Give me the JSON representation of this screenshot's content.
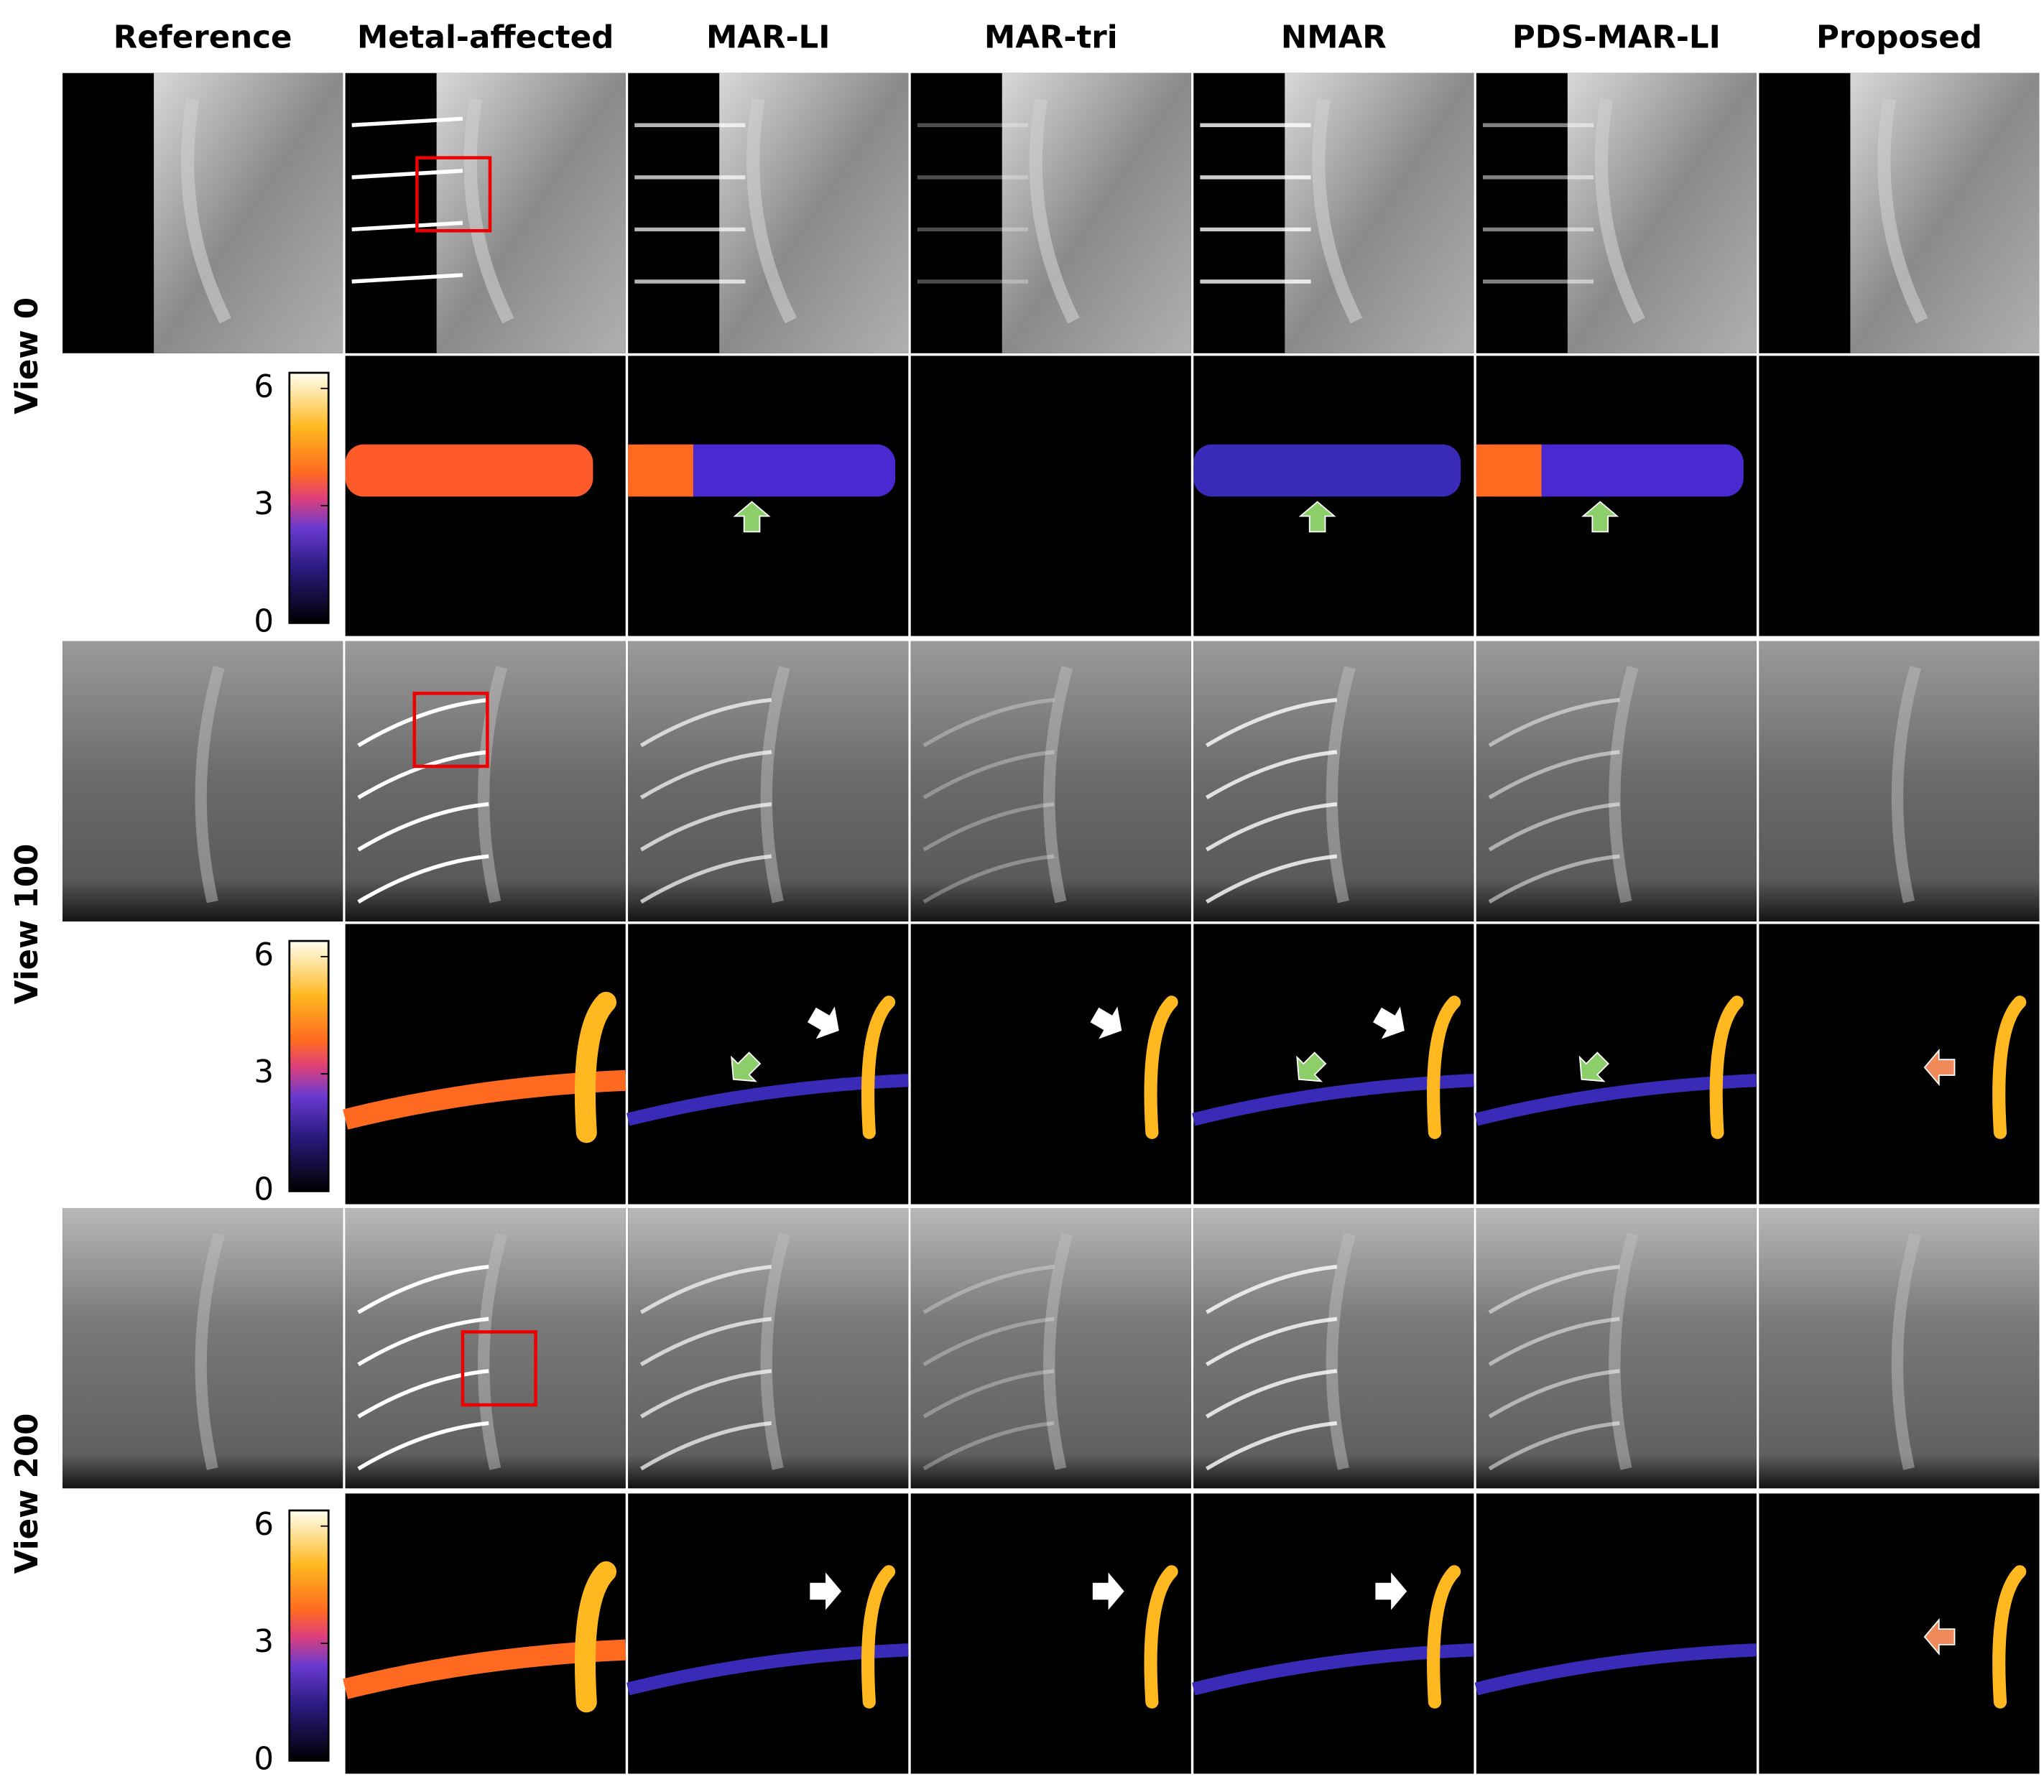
{
  "columns": [
    "Reference",
    "Metal-affected",
    "MAR-LI",
    "MAR-tri",
    "NMAR",
    "PDS-MAR-LI",
    "Proposed"
  ],
  "views": [
    {
      "label": "View 0",
      "colorbar": {
        "clim": [
          0,
          6.4
        ],
        "ticks": [
          0,
          3,
          6
        ]
      }
    },
    {
      "label": "View 100",
      "colorbar": {
        "clim": [
          0,
          6.4
        ],
        "ticks": [
          0,
          3,
          6
        ]
      }
    },
    {
      "label": "View 200",
      "colorbar": {
        "clim": [
          0,
          6.4
        ],
        "ticks": [
          0,
          3,
          6
        ]
      }
    }
  ]
}
